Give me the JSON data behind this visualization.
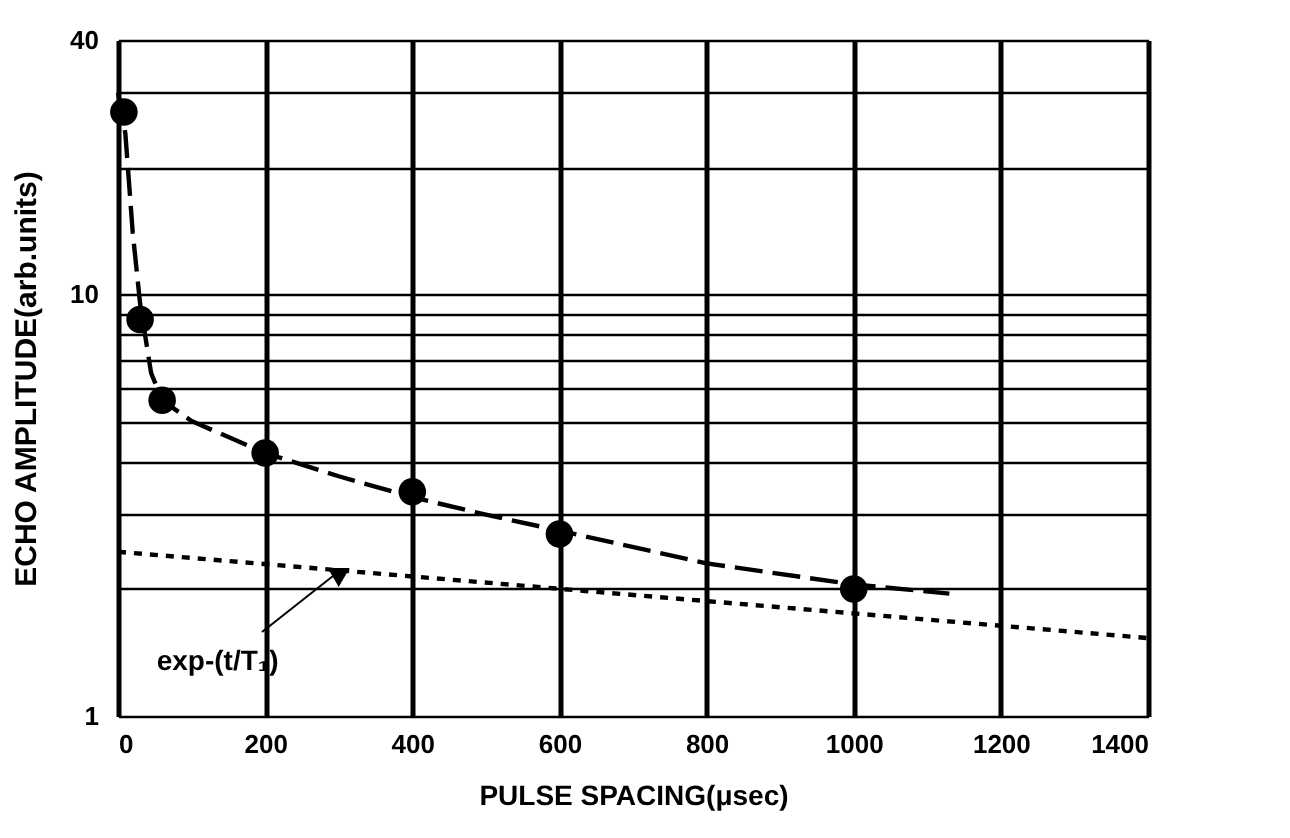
{
  "chart_data": {
    "type": "scatter",
    "xlabel": "PULSE SPACING(μsec)",
    "ylabel": "ECHO AMPLITUDE(arb.units)",
    "log": "y",
    "grid": true,
    "xlim": [
      0,
      1400
    ],
    "xticks": [
      0,
      200,
      400,
      600,
      800,
      1000,
      1200,
      1400
    ],
    "ylim": [
      1,
      40
    ],
    "yticks": [
      1,
      {
        "value": 2,
        "label": null
      },
      {
        "value": 3,
        "label": null
      },
      {
        "value": 4,
        "label": null
      },
      {
        "value": 5,
        "label": null
      },
      {
        "value": 6,
        "label": null
      },
      {
        "value": 7,
        "label": null
      },
      {
        "value": 8,
        "label": null
      },
      {
        "value": 9,
        "label": null
      },
      10,
      {
        "value": 20,
        "label": null
      },
      {
        "value": 30,
        "label": null
      },
      40
    ],
    "series": [
      {
        "marker": "circle",
        "color": "#000000",
        "x": [
          8,
          30,
          60,
          200,
          400,
          600,
          1000
        ],
        "values": [
          27,
          8.7,
          5.6,
          4.2,
          3.4,
          2.7,
          2.0
        ]
      },
      {
        "type": "line",
        "line_style": "dashed",
        "marker": "none",
        "color": "#000000",
        "x": [
          0,
          10,
          20,
          30,
          45,
          60,
          100,
          200,
          300,
          400,
          500,
          600,
          800,
          1000,
          1130
        ],
        "values": [
          30,
          24,
          14,
          9.5,
          6.5,
          5.6,
          5.0,
          4.2,
          3.7,
          3.3,
          3.0,
          2.75,
          2.3,
          2.05,
          1.95
        ]
      },
      {
        "type": "line",
        "line_style": "dotted",
        "marker": "none",
        "color": "#000000",
        "x": [
          0,
          1400
        ],
        "values": [
          2.45,
          1.53
        ]
      }
    ],
    "annotations": [
      {
        "text": "exp-(t/T₁)",
        "x": 300,
        "y": 2.2
      }
    ]
  }
}
